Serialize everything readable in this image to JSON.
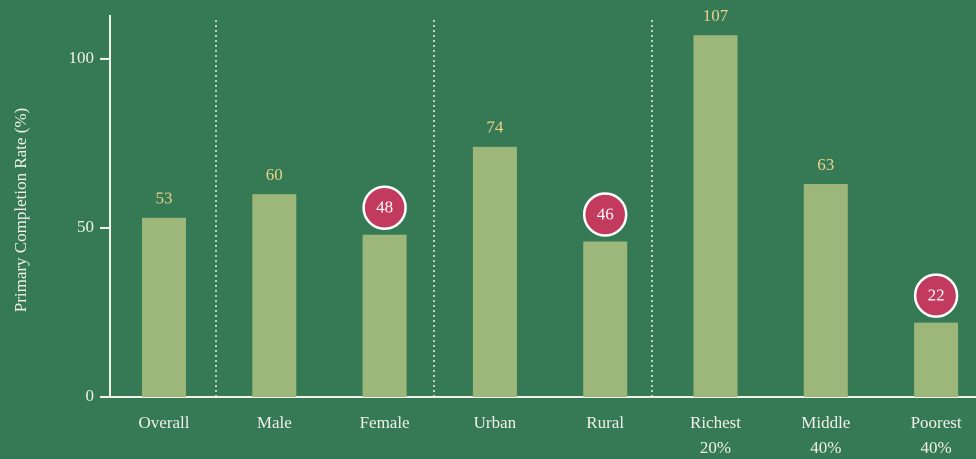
{
  "chart_data": {
    "type": "bar",
    "y_axis_label": "Primary Completion Rate (%)",
    "categories": [
      "Overall",
      "Male",
      "Female",
      "Urban",
      "Rural",
      [
        "Richest",
        "20%"
      ],
      [
        "Middle",
        "40%"
      ],
      [
        "Poorest",
        "40%"
      ]
    ],
    "values": [
      53,
      60,
      48,
      74,
      46,
      107,
      63,
      22
    ],
    "color": "#9db679",
    "label_color": "#ead48a",
    "highlight": [
      2,
      4,
      7
    ],
    "highlight_color": "#c23a5c",
    "ylim": [
      0,
      113
    ],
    "yticks": [
      0,
      50,
      100
    ],
    "grid": false
  }
}
